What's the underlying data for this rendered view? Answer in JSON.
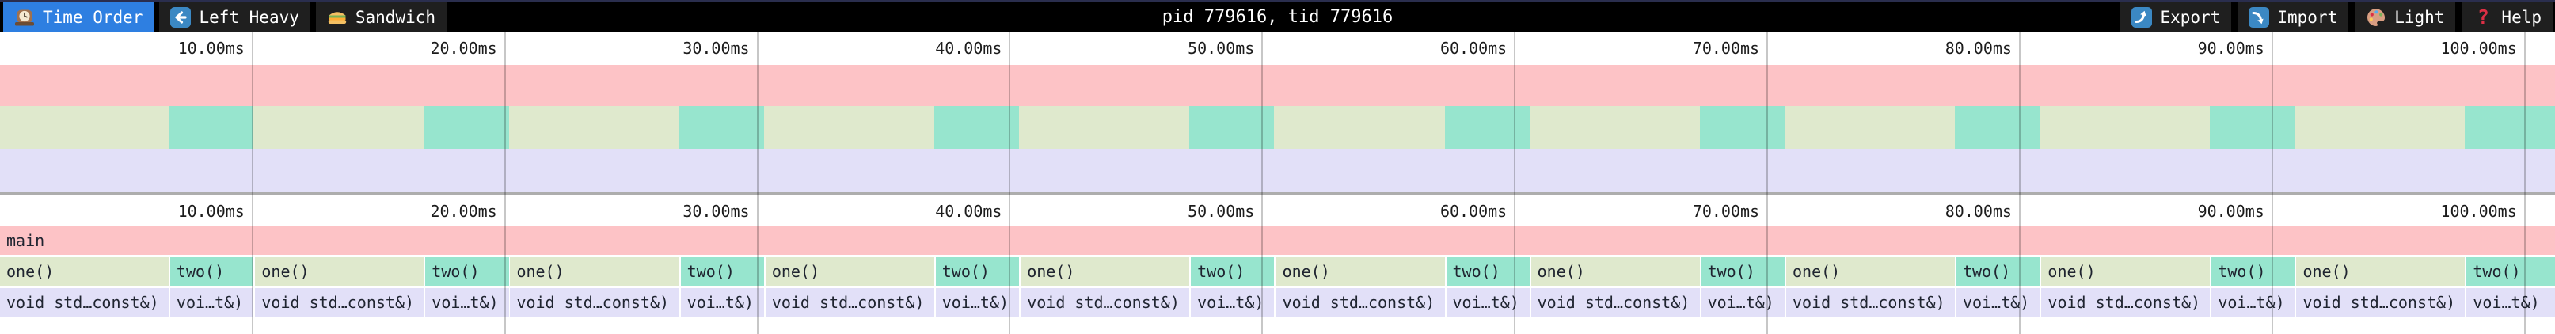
{
  "toolbar": {
    "tabs": [
      {
        "label": "Time Order",
        "icon": "clock-icon",
        "active": true
      },
      {
        "label": "Left Heavy",
        "icon": "left-arrow-icon",
        "active": false
      },
      {
        "label": "Sandwich",
        "icon": "sandwich-icon",
        "active": false
      }
    ],
    "title": "pid 779616, tid 779616",
    "buttons": [
      {
        "label": "Export",
        "icon": "export-icon"
      },
      {
        "label": "Import",
        "icon": "import-icon"
      },
      {
        "label": "Light",
        "icon": "palette-icon"
      },
      {
        "label": "Help",
        "icon": "help-icon"
      }
    ]
  },
  "colors": {
    "accent_blue": "#2e7fe1",
    "icon_blue": "#3b88c3",
    "frame_pink": "#fdc3c6",
    "frame_green": "#dfe9cd",
    "frame_teal": "#97e5ce",
    "frame_lavender": "#e2e0f8",
    "toolbar_bg": "#000000",
    "tab_bg": "#1f1f1f",
    "top_strip": "#2a2e4e",
    "separator": "#adadad"
  },
  "chart_data": {
    "type": "flamegraph",
    "title": "pid 779616, tid 779616",
    "time_axis": {
      "ticks": [
        "10.00ms",
        "20.00ms",
        "30.00ms",
        "40.00ms",
        "50.00ms",
        "60.00ms",
        "70.00ms",
        "80.00ms",
        "90.00ms",
        "100.00ms"
      ],
      "tick_interval_ms": 10,
      "view_start_ms": 0,
      "view_end_ms": 101.2,
      "grid": true
    },
    "frames": {
      "root": "main",
      "level1": [
        "one()",
        "two()"
      ],
      "level2": [
        "void std…const&)",
        "voi…t&)"
      ]
    },
    "cycles": [
      {
        "one": [
          0.0,
          6.68
        ],
        "two": [
          6.74,
          10.04
        ]
      },
      {
        "one": [
          10.11,
          16.79
        ],
        "two": [
          16.85,
          20.15
        ]
      },
      {
        "one": [
          20.21,
          26.89
        ],
        "two": [
          26.96,
          30.26
        ]
      },
      {
        "one": [
          30.32,
          37.0
        ],
        "two": [
          37.06,
          40.36
        ]
      },
      {
        "one": [
          40.43,
          47.11
        ],
        "two": [
          47.17,
          50.47
        ]
      },
      {
        "one": [
          50.54,
          57.22
        ],
        "two": [
          57.28,
          60.58
        ]
      },
      {
        "one": [
          60.64,
          67.32
        ],
        "two": [
          67.38,
          70.68
        ]
      },
      {
        "one": [
          70.75,
          77.43
        ],
        "two": [
          77.49,
          80.79
        ]
      },
      {
        "one": [
          80.86,
          87.54
        ],
        "two": [
          87.6,
          90.9
        ]
      },
      {
        "one": [
          90.96,
          97.64
        ],
        "two": [
          97.7,
          101.2
        ]
      }
    ]
  }
}
